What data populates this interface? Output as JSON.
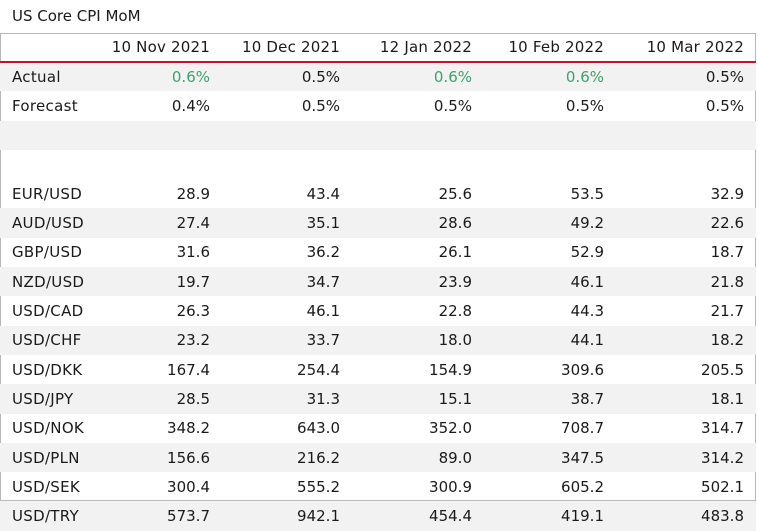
{
  "title": "US Core CPI MoM",
  "columns": [
    "",
    "10 Nov 2021",
    "10 Dec 2021",
    "12 Jan 2022",
    "10 Feb 2022",
    "10 Mar 2022"
  ],
  "colors": {
    "accent_line": "#c8102e",
    "positive": "#3aa36b",
    "shade": "#f2f2f2"
  },
  "rows": [
    {
      "label": "Actual",
      "values": [
        "0.6%",
        "0.5%",
        "0.6%",
        "0.6%",
        "0.5%"
      ],
      "green": [
        true,
        false,
        true,
        true,
        false
      ],
      "shaded": true
    },
    {
      "label": "Forecast",
      "values": [
        "0.4%",
        "0.5%",
        "0.5%",
        "0.5%",
        "0.5%"
      ],
      "green": [
        false,
        false,
        false,
        false,
        false
      ],
      "shaded": false
    },
    {
      "label": "",
      "values": [
        "",
        "",
        "",
        "",
        ""
      ],
      "green": [
        false,
        false,
        false,
        false,
        false
      ],
      "shaded": true
    },
    {
      "label": "",
      "values": [
        "",
        "",
        "",
        "",
        ""
      ],
      "green": [
        false,
        false,
        false,
        false,
        false
      ],
      "shaded": false
    },
    {
      "label": "EUR/USD",
      "values": [
        "28.9",
        "43.4",
        "25.6",
        "53.5",
        "32.9"
      ],
      "green": [
        false,
        false,
        false,
        false,
        false
      ],
      "shaded": false
    },
    {
      "label": "AUD/USD",
      "values": [
        "27.4",
        "35.1",
        "28.6",
        "49.2",
        "22.6"
      ],
      "green": [
        false,
        false,
        false,
        false,
        false
      ],
      "shaded": true
    },
    {
      "label": "GBP/USD",
      "values": [
        "31.6",
        "36.2",
        "26.1",
        "52.9",
        "18.7"
      ],
      "green": [
        false,
        false,
        false,
        false,
        false
      ],
      "shaded": false
    },
    {
      "label": "NZD/USD",
      "values": [
        "19.7",
        "34.7",
        "23.9",
        "46.1",
        "21.8"
      ],
      "green": [
        false,
        false,
        false,
        false,
        false
      ],
      "shaded": true
    },
    {
      "label": "USD/CAD",
      "values": [
        "26.3",
        "46.1",
        "22.8",
        "44.3",
        "21.7"
      ],
      "green": [
        false,
        false,
        false,
        false,
        false
      ],
      "shaded": false
    },
    {
      "label": "USD/CHF",
      "values": [
        "23.2",
        "33.7",
        "18.0",
        "44.1",
        "18.2"
      ],
      "green": [
        false,
        false,
        false,
        false,
        false
      ],
      "shaded": true
    },
    {
      "label": "USD/DKK",
      "values": [
        "167.4",
        "254.4",
        "154.9",
        "309.6",
        "205.5"
      ],
      "green": [
        false,
        false,
        false,
        false,
        false
      ],
      "shaded": false
    },
    {
      "label": "USD/JPY",
      "values": [
        "28.5",
        "31.3",
        "15.1",
        "38.7",
        "18.1"
      ],
      "green": [
        false,
        false,
        false,
        false,
        false
      ],
      "shaded": true
    },
    {
      "label": "USD/NOK",
      "values": [
        "348.2",
        "643.0",
        "352.0",
        "708.7",
        "314.7"
      ],
      "green": [
        false,
        false,
        false,
        false,
        false
      ],
      "shaded": false
    },
    {
      "label": "USD/PLN",
      "values": [
        "156.6",
        "216.2",
        "89.0",
        "347.5",
        "314.2"
      ],
      "green": [
        false,
        false,
        false,
        false,
        false
      ],
      "shaded": true
    },
    {
      "label": "USD/SEK",
      "values": [
        "300.4",
        "555.2",
        "300.9",
        "605.2",
        "502.1"
      ],
      "green": [
        false,
        false,
        false,
        false,
        false
      ],
      "shaded": false
    },
    {
      "label": "USD/TRY",
      "values": [
        "573.7",
        "942.1",
        "454.4",
        "419.1",
        "483.8"
      ],
      "green": [
        false,
        false,
        false,
        false,
        false
      ],
      "shaded": true
    }
  ]
}
